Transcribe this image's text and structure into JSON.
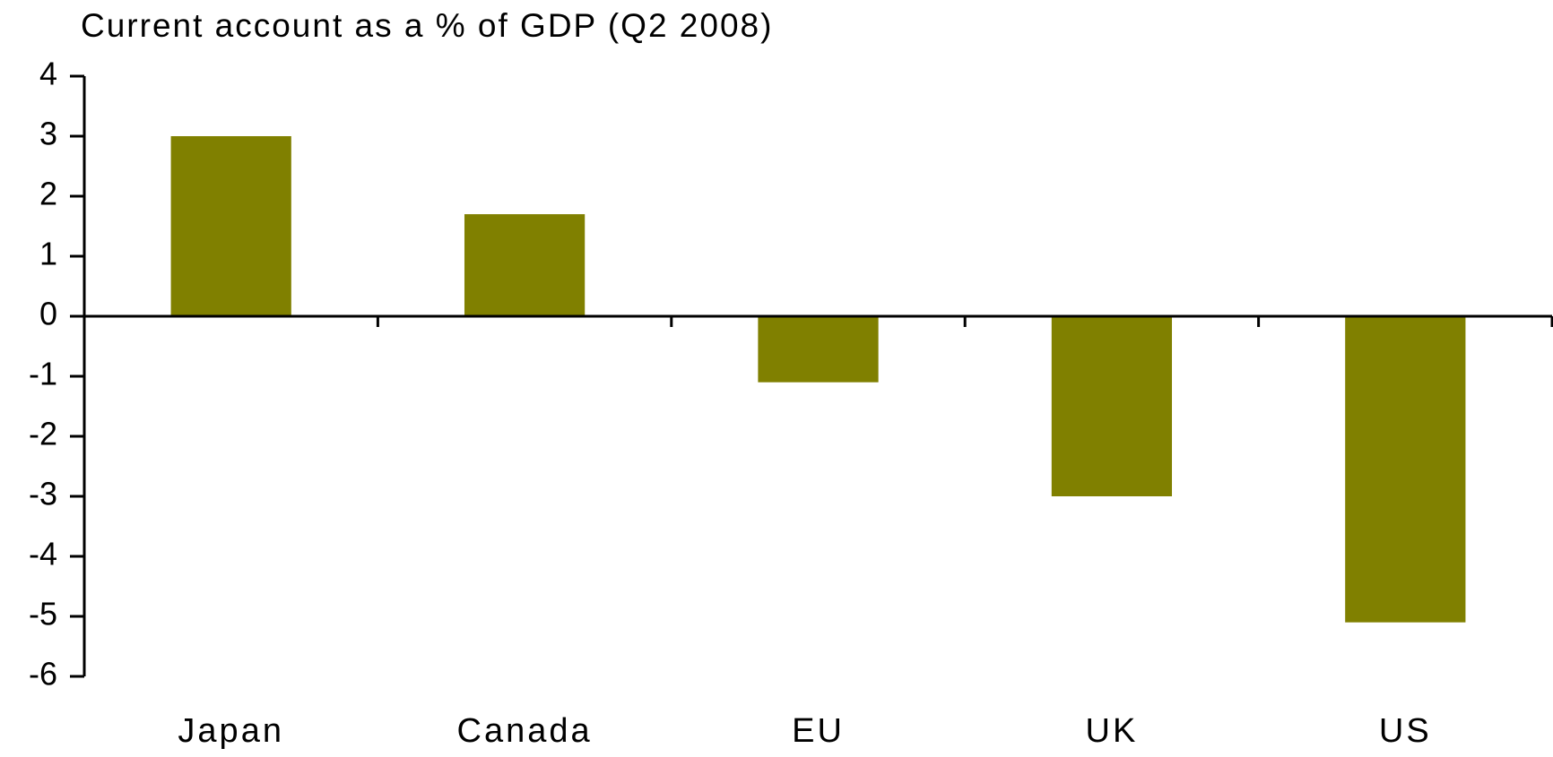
{
  "chart_data": {
    "type": "bar",
    "title": "Current account as a % of GDP (Q2 2008)",
    "categories": [
      "Japan",
      "Canada",
      "EU",
      "UK",
      "US"
    ],
    "values": [
      3.0,
      1.7,
      -1.1,
      -3.0,
      -5.1
    ],
    "color": "#808000",
    "ylim": [
      -6,
      4
    ],
    "yticks": [
      -6,
      -5,
      -4,
      -3,
      -2,
      -1,
      0,
      1,
      2,
      3,
      4
    ],
    "grid": false
  }
}
